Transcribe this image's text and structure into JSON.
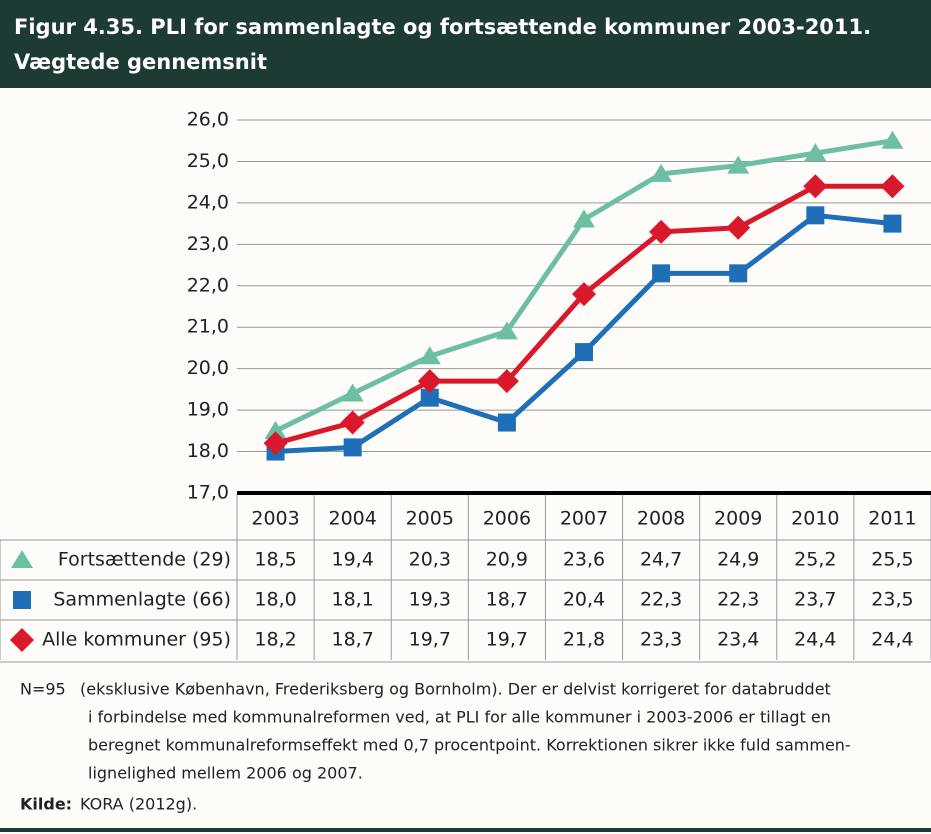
{
  "chart_data": {
    "type": "line",
    "title": "Figur 4.35. PLI for sammenlagte og fortsættende kommuner 2003-2011.",
    "subtitle": "Vægtede gennemsnit",
    "categories": [
      "2003",
      "2004",
      "2005",
      "2006",
      "2007",
      "2008",
      "2009",
      "2010",
      "2011"
    ],
    "series": [
      {
        "name": "Fortsættende (29)",
        "color": "#6dbfa3",
        "marker": "triangle",
        "values": [
          18.5,
          19.4,
          20.3,
          20.9,
          23.6,
          24.7,
          24.9,
          25.2,
          25.5
        ],
        "value_labels": [
          "18,5",
          "19,4",
          "20,3",
          "20,9",
          "23,6",
          "24,7",
          "24,9",
          "25,2",
          "25,5"
        ]
      },
      {
        "name": "Sammenlagte (66)",
        "color": "#1f6fb8",
        "marker": "square",
        "values": [
          18.0,
          18.1,
          19.3,
          18.7,
          20.4,
          22.3,
          22.3,
          23.7,
          23.5
        ],
        "value_labels": [
          "18,0",
          "18,1",
          "19,3",
          "18,7",
          "20,4",
          "22,3",
          "22,3",
          "23,7",
          "23,5"
        ]
      },
      {
        "name": "Alle kommuner (95)",
        "color": "#d9182b",
        "marker": "diamond",
        "values": [
          18.2,
          18.7,
          19.7,
          19.7,
          21.8,
          23.3,
          23.4,
          24.4,
          24.4
        ],
        "value_labels": [
          "18,2",
          "18,7",
          "19,7",
          "19,7",
          "21,8",
          "23,3",
          "23,4",
          "24,4",
          "24,4"
        ]
      }
    ],
    "ylim": [
      17,
      26
    ],
    "yticks": [
      {
        "value": 17,
        "label": "17,0"
      },
      {
        "value": 18,
        "label": "18,0"
      },
      {
        "value": 19,
        "label": "19,0"
      },
      {
        "value": 20,
        "label": "20,0"
      },
      {
        "value": 21,
        "label": "21,0"
      },
      {
        "value": 22,
        "label": "22,0"
      },
      {
        "value": 23,
        "label": "23,0"
      },
      {
        "value": 24,
        "label": "24,0"
      },
      {
        "value": 25,
        "label": "25,0"
      },
      {
        "value": 26,
        "label": "26,0"
      }
    ],
    "grid": true,
    "note_label": "N=95",
    "note_lines": [
      "(eksklusive København, Frederiksberg og Bornholm). Der er delvist korrigeret for databruddet",
      "i forbindelse med kommunalreformen ved, at PLI for alle kommuner i 2003-2006 er tillagt en",
      "beregnet kommunalreformseffekt med 0,7 procentpoint. Korrektionen sikrer ikke fuld sammen-",
      "lignelighed mellem 2006 og 2007."
    ],
    "source_label": "Kilde:",
    "source": "KORA (2012g)."
  }
}
